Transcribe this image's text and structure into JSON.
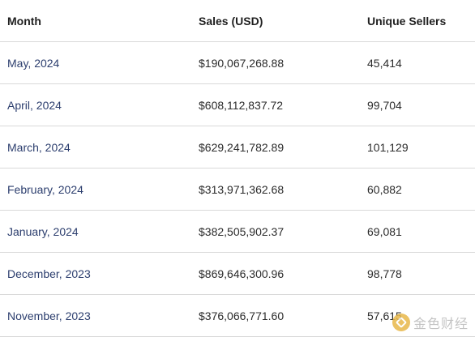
{
  "table": {
    "headers": [
      "Month",
      "Sales (USD)",
      "Unique Sellers"
    ],
    "rows": [
      {
        "month": "May, 2024",
        "sales": "$190,067,268.88",
        "sellers": "45,414"
      },
      {
        "month": "April, 2024",
        "sales": "$608,112,837.72",
        "sellers": "99,704"
      },
      {
        "month": "March, 2024",
        "sales": "$629,241,782.89",
        "sellers": "101,129"
      },
      {
        "month": "February, 2024",
        "sales": "$313,971,362.68",
        "sellers": "60,882"
      },
      {
        "month": "January, 2024",
        "sales": "$382,505,902.37",
        "sellers": "69,081"
      },
      {
        "month": "December, 2023",
        "sales": "$869,646,300.96",
        "sellers": "98,778"
      },
      {
        "month": "November, 2023",
        "sales": "$376,066,771.60",
        "sellers": "57,615"
      }
    ]
  },
  "watermark": {
    "text": "金色财经",
    "logo_color": "#e8b84a"
  }
}
